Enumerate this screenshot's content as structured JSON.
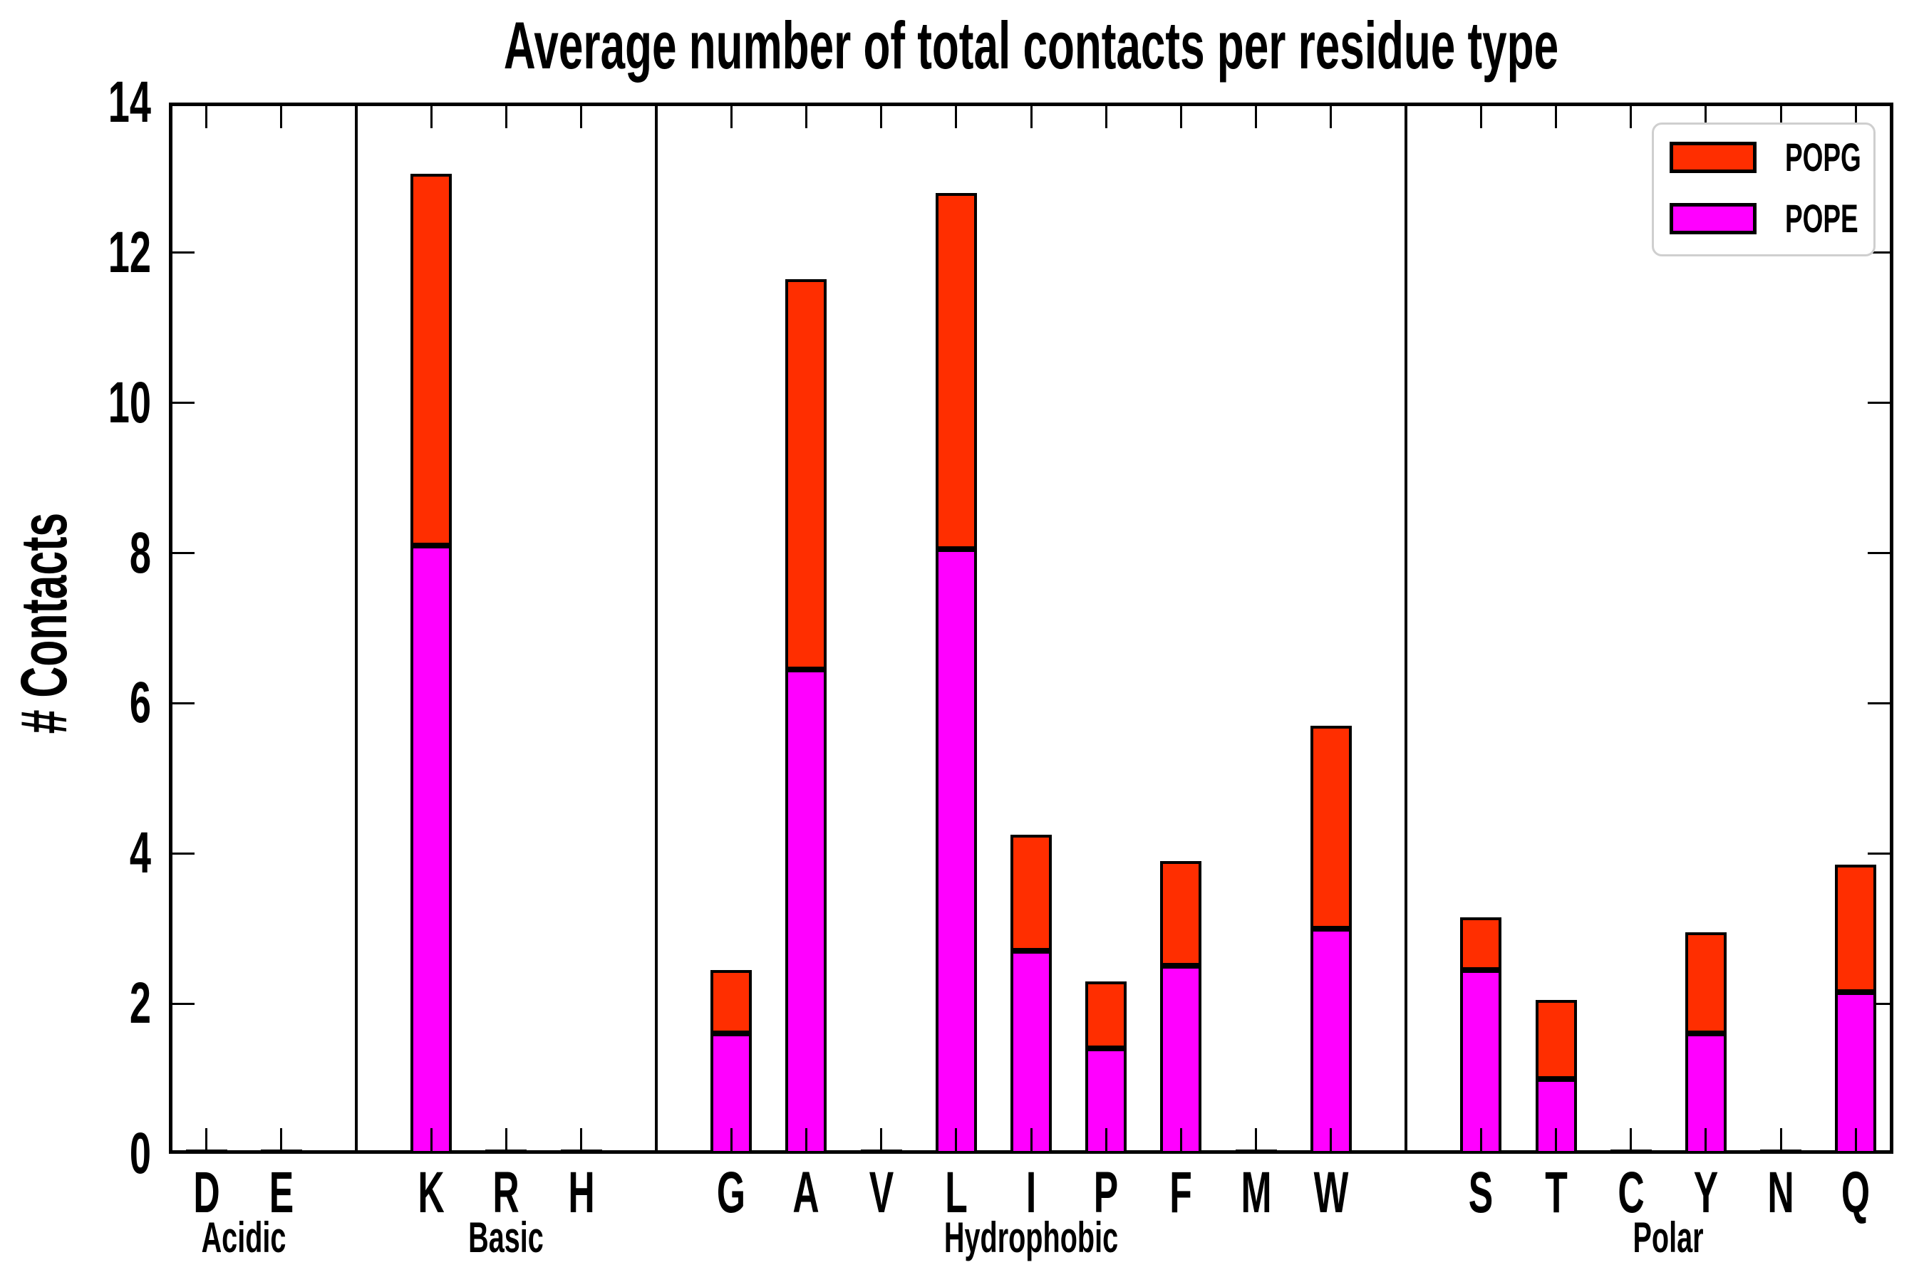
{
  "title": "Average number of total contacts per residue type",
  "ylabel": "# Contacts",
  "legend": [
    {
      "label": "POPG",
      "color": "#ff2e00"
    },
    {
      "label": "POPE",
      "color": "#ff00ff"
    }
  ],
  "chart_data": {
    "type": "bar",
    "stacked": true,
    "title": "Average number of total contacts per residue type",
    "xlabel": "",
    "ylabel": "# Contacts",
    "ylim": [
      0,
      14
    ],
    "yticks": [
      0,
      2,
      4,
      6,
      8,
      10,
      12,
      14
    ],
    "grid": false,
    "legend_position": "upper right",
    "groups": [
      {
        "label": "Acidic",
        "categories": [
          "D",
          "E"
        ]
      },
      {
        "label": "Basic",
        "categories": [
          "K",
          "R",
          "H"
        ]
      },
      {
        "label": "Hydrophobic",
        "categories": [
          "G",
          "A",
          "V",
          "L",
          "I",
          "P",
          "F",
          "M",
          "W"
        ]
      },
      {
        "label": "Polar",
        "categories": [
          "S",
          "T",
          "C",
          "Y",
          "N",
          "Q"
        ]
      }
    ],
    "categories": [
      "D",
      "E",
      "K",
      "R",
      "H",
      "G",
      "A",
      "V",
      "L",
      "I",
      "P",
      "F",
      "M",
      "W",
      "S",
      "T",
      "C",
      "Y",
      "N",
      "Q"
    ],
    "series": [
      {
        "name": "POPE",
        "color": "#ff00ff",
        "values": [
          0.03,
          0.03,
          8.1,
          0.03,
          0.03,
          1.6,
          6.45,
          0.03,
          8.05,
          2.7,
          1.4,
          2.5,
          0.03,
          3.0,
          2.45,
          1.0,
          0.03,
          1.6,
          0.03,
          2.15
        ]
      },
      {
        "name": "POPG",
        "color": "#ff2e00",
        "values": [
          0.03,
          0.03,
          4.95,
          0.03,
          0.03,
          0.85,
          5.2,
          0.03,
          4.75,
          1.55,
          0.9,
          1.4,
          0.03,
          2.7,
          0.7,
          1.05,
          0.03,
          1.35,
          0.03,
          1.7
        ]
      }
    ]
  }
}
